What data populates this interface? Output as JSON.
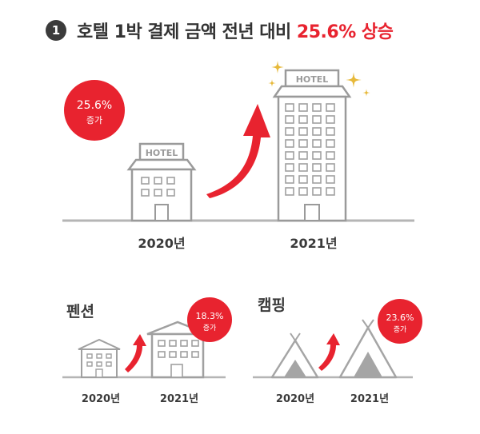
{
  "headline": {
    "number": "1",
    "text": "호텔 1박 결제 금액 전년 대비",
    "highlight": "25.6% 상승"
  },
  "hotel": {
    "badge_value": "25.6%",
    "badge_label": "증가",
    "sign": "HOTEL",
    "year_left": "2020년",
    "year_right": "2021년"
  },
  "pension": {
    "title": "펜션",
    "badge_value": "18.3%",
    "badge_label": "증가",
    "year_left": "2020년",
    "year_right": "2021년"
  },
  "camping": {
    "title": "캠핑",
    "badge_value": "23.6%",
    "badge_label": "증가",
    "year_left": "2020년",
    "year_right": "2021년"
  },
  "colors": {
    "accent": "#e8232f",
    "line": "#b5b5b5",
    "text": "#333333",
    "sparkle": "#e7b93a"
  }
}
